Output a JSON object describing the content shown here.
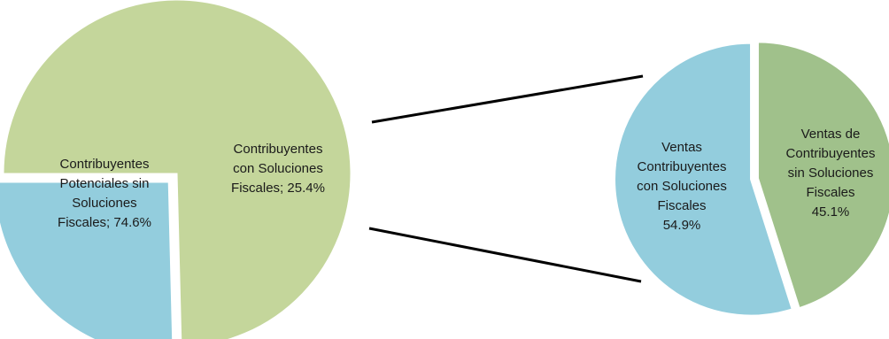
{
  "chart_data": [
    {
      "type": "pie",
      "categories": [
        "Contribuyentes Potenciales sin Soluciones Fiscales",
        "Contribuyentes con Soluciones Fiscales"
      ],
      "values": [
        74.6,
        25.4
      ],
      "unit": "%",
      "colors": [
        "#c4d69b",
        "#93cddd"
      ],
      "data_labels": [
        [
          "Contribuyentes",
          "Potenciales sin",
          "Soluciones",
          "Fiscales; 74.6%"
        ],
        [
          "Contribuyentes",
          "con Soluciones",
          "Fiscales; 25.4%"
        ]
      ],
      "exploded_slice": "Contribuyentes con Soluciones Fiscales"
    },
    {
      "type": "pie",
      "categories": [
        "Ventas Contribuyentes con Soluciones Fiscales",
        "Ventas de Contribuyentes sin Soluciones Fiscales"
      ],
      "values": [
        54.9,
        45.1
      ],
      "unit": "%",
      "colors": [
        "#93cddd",
        "#a0c18b"
      ],
      "data_labels": [
        [
          "Ventas",
          "Contribuyentes",
          "con Soluciones",
          "Fiscales",
          "54.9%"
        ],
        [
          "Ventas de",
          "Contribuyentes",
          "sin Soluciones",
          "Fiscales",
          "45.1%"
        ]
      ]
    }
  ]
}
